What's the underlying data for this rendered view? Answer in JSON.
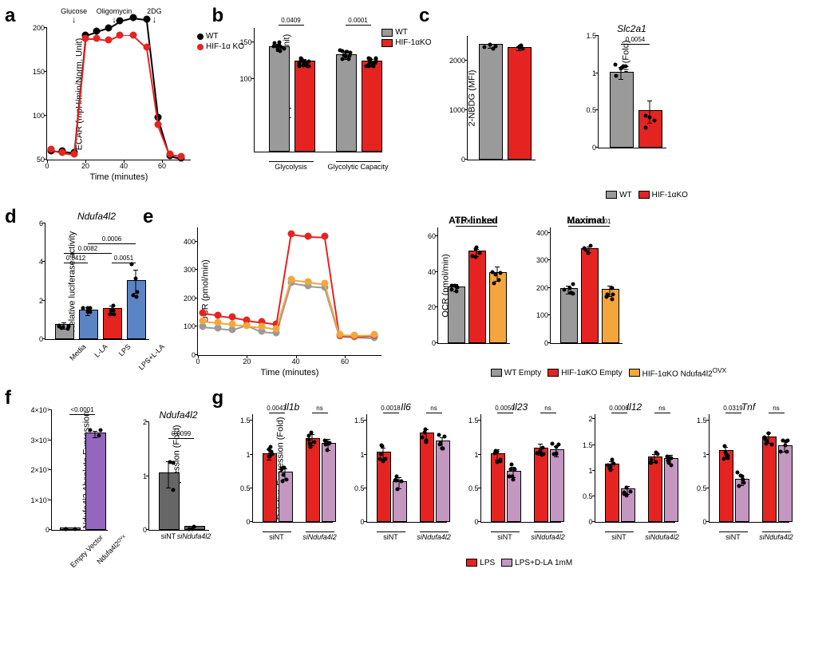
{
  "colors": {
    "wt_gray": "#9a9a9a",
    "ko_red": "#e52421",
    "lla_blue": "#5b84c4",
    "ndufa_orange": "#f4a63d",
    "ndufa_purple": "#9467bd",
    "lps_dla_mauve": "#c497c1",
    "black": "#000000",
    "white": "#ffffff"
  },
  "panel_a": {
    "label": "a",
    "ytitle": "ECAR (mpH/min/Norm. Unit)",
    "xtitle": "Time (minutes)",
    "ylim": [
      50,
      200
    ],
    "yticks": [
      50,
      100,
      150,
      200
    ],
    "xlim": [
      0,
      75
    ],
    "xticks": [
      0,
      20,
      40,
      60
    ],
    "arrows": [
      {
        "x": 14,
        "label": "Glucose"
      },
      {
        "x": 35,
        "label": "Oligomycin"
      },
      {
        "x": 56,
        "label": "2DG"
      }
    ],
    "series": [
      {
        "name": "WT",
        "color": "#000000",
        "marker_fill": "#000000",
        "x": [
          2,
          8,
          14,
          20,
          26,
          32,
          38,
          45,
          52,
          58,
          64,
          70
        ],
        "y": [
          60,
          60,
          58,
          192,
          196,
          200,
          208,
          212,
          210,
          98,
          55,
          52
        ]
      },
      {
        "name": "HIF-1α KO",
        "color": "#e52421",
        "marker_fill": "#e52421",
        "x": [
          2,
          8,
          14,
          20,
          26,
          32,
          38,
          45,
          52,
          58,
          64,
          70
        ],
        "y": [
          62,
          58,
          56,
          188,
          188,
          186,
          192,
          192,
          178,
          90,
          56,
          54
        ]
      }
    ]
  },
  "panel_b": {
    "label": "b",
    "ytitle": "ECAR (mpH/min/Norm. Unit)",
    "ylim": [
      0,
      170
    ],
    "yticks": [
      100,
      150
    ],
    "groups": [
      "Glycolysis",
      "Glycolytic Capacity"
    ],
    "bars": [
      {
        "group": 0,
        "pos": 0,
        "color": "#9a9a9a",
        "value": 143,
        "err": 5,
        "n": 10
      },
      {
        "group": 0,
        "pos": 1,
        "color": "#e52421",
        "value": 123,
        "err": 4,
        "n": 16
      },
      {
        "group": 1,
        "pos": 0,
        "color": "#9a9a9a",
        "value": 132,
        "err": 5,
        "n": 10
      },
      {
        "group": 1,
        "pos": 1,
        "color": "#e52421",
        "value": 123,
        "err": 4,
        "n": 16
      }
    ],
    "sig": [
      {
        "g0": 0,
        "g1": 1,
        "group": 0,
        "label": "0.0409"
      },
      {
        "g0": 0,
        "g1": 1,
        "group": 1,
        "label": "0.0001"
      }
    ],
    "legend": [
      {
        "label": "WT",
        "color": "#9a9a9a"
      },
      {
        "label": "HIF-1αKO",
        "color": "#e52421"
      }
    ]
  },
  "panel_c_left": {
    "label": "c",
    "ytitle": "2-NBDG (MFI)",
    "ylim": [
      0,
      2500
    ],
    "yticks": [
      0,
      1000,
      2000
    ],
    "bars": [
      {
        "pos": 0,
        "color": "#9a9a9a",
        "value": 2300,
        "err": 40,
        "n": 4
      },
      {
        "pos": 1,
        "color": "#e52421",
        "value": 2250,
        "err": 40,
        "n": 4
      }
    ]
  },
  "panel_c_right": {
    "title": "Slc2a1",
    "ytitle": "Relative Expression (Fold)",
    "ylim": [
      0,
      1.5
    ],
    "yticks": [
      0,
      0.5,
      1.0,
      1.5
    ],
    "bars": [
      {
        "pos": 0,
        "color": "#9a9a9a",
        "value": 1.0,
        "err": 0.08,
        "n": 7
      },
      {
        "pos": 1,
        "color": "#e52421",
        "value": 0.48,
        "err": 0.15,
        "n": 4
      }
    ],
    "sig": [
      {
        "g0": 0,
        "g1": 1,
        "label": "0.0054"
      }
    ],
    "legend": [
      {
        "label": "WT",
        "color": "#9a9a9a"
      },
      {
        "label": "HIF-1αKO",
        "color": "#e52421"
      }
    ]
  },
  "panel_d": {
    "label": "d",
    "title": "Ndufa4l2",
    "ytitle": "Relative luciferase activity",
    "ylim": [
      0,
      6
    ],
    "yticks": [
      0,
      2,
      4,
      6
    ],
    "xlabels": [
      "Media",
      "L-LA",
      "LPS",
      "LPS+L-LA"
    ],
    "bars": [
      {
        "pos": 0,
        "color": "#9a9a9a",
        "value": 0.7,
        "err": 0.15,
        "n": 6
      },
      {
        "pos": 1,
        "color": "#5b84c4",
        "value": 1.45,
        "err": 0.2,
        "n": 6
      },
      {
        "pos": 2,
        "color": "#e52421",
        "value": 1.55,
        "err": 0.2,
        "n": 6
      },
      {
        "pos": 3,
        "color": "#5b84c4",
        "value": 3.0,
        "err": 0.6,
        "n": 6
      }
    ],
    "sig": [
      {
        "g0": 0,
        "g1": 1,
        "label": "0.0412",
        "level": 0
      },
      {
        "g0": 0,
        "g1": 2,
        "label": "0.0082",
        "level": 1
      },
      {
        "g0": 2,
        "g1": 3,
        "label": "0.0051",
        "level": 0
      },
      {
        "g0": 1,
        "g1": 3,
        "label": "0.0006",
        "level": 2
      }
    ]
  },
  "panel_e_line": {
    "label": "e",
    "ytitle": "OCR (pmol/min)",
    "xtitle": "Time (minutes)",
    "ylim": [
      0,
      450
    ],
    "yticks": [
      0,
      100,
      200,
      300,
      400
    ],
    "xlim": [
      0,
      75
    ],
    "xticks": [
      0,
      20,
      40,
      60
    ],
    "series": [
      {
        "name": "WT Empty",
        "color": "#9a9a9a",
        "x": [
          2,
          8,
          14,
          20,
          26,
          32,
          38,
          45,
          52,
          58,
          64,
          72
        ],
        "y": [
          100,
          95,
          90,
          108,
          85,
          80,
          255,
          245,
          240,
          68,
          65,
          62
        ]
      },
      {
        "name": "HIF-1αKO Empty",
        "color": "#e52421",
        "x": [
          2,
          8,
          14,
          20,
          26,
          32,
          38,
          45,
          52,
          58,
          64,
          72
        ],
        "y": [
          148,
          142,
          135,
          125,
          118,
          110,
          428,
          420,
          418,
          70,
          68,
          70
        ]
      },
      {
        "name": "HIF-1αKO Ndufa4l2OVX",
        "color": "#f4a63d",
        "x": [
          2,
          8,
          14,
          20,
          26,
          32,
          38,
          45,
          52,
          58,
          64,
          72
        ],
        "y": [
          120,
          115,
          110,
          105,
          100,
          92,
          268,
          260,
          252,
          72,
          70,
          72
        ]
      }
    ]
  },
  "panel_e_atp": {
    "title": "ATP-linked",
    "ytitle": "OCR (pmol/min)",
    "ylim": [
      0,
      65
    ],
    "yticks": [
      0,
      20,
      40,
      60
    ],
    "bars": [
      {
        "pos": 0,
        "color": "#9a9a9a",
        "value": 31,
        "err": 2,
        "n": 6
      },
      {
        "pos": 1,
        "color": "#e52421",
        "value": 51,
        "err": 2,
        "n": 5
      },
      {
        "pos": 2,
        "color": "#f4a63d",
        "value": 39,
        "err": 4,
        "n": 5
      }
    ],
    "sig": [
      {
        "g0": 0,
        "g1": 1,
        "label": "0.0001",
        "level": 0
      },
      {
        "g0": 1,
        "g1": 2,
        "label": "0.0133",
        "level": 0
      }
    ]
  },
  "panel_e_max": {
    "title": "Maximal",
    "ylim": [
      0,
      420
    ],
    "yticks": [
      0,
      100,
      200,
      300,
      400
    ],
    "bars": [
      {
        "pos": 0,
        "color": "#9a9a9a",
        "value": 195,
        "err": 15,
        "n": 6
      },
      {
        "pos": 1,
        "color": "#e52421",
        "value": 340,
        "err": 10,
        "n": 5
      },
      {
        "pos": 2,
        "color": "#f4a63d",
        "value": 190,
        "err": 20,
        "n": 5
      }
    ],
    "sig": [
      {
        "g0": 0,
        "g1": 1,
        "label": "<0.0001",
        "level": 0
      },
      {
        "g0": 1,
        "g1": 2,
        "label": "<0.0001",
        "level": 0
      }
    ]
  },
  "panel_e_legend": [
    {
      "label": "WT Empty",
      "color": "#9a9a9a"
    },
    {
      "label": "HIF-1αKO Empty",
      "color": "#e52421"
    },
    {
      "label": "HIF-1αKO Ndufa4l2",
      "sup": "OVX",
      "color": "#f4a63d"
    }
  ],
  "panel_f_left": {
    "label": "f",
    "ytitle": "Ndufa4l2 Absolute Expression",
    "ylim": [
      0,
      40000000.0
    ],
    "yticks_labels": [
      "0",
      "1×10⁷",
      "2×10⁷",
      "3×10⁷",
      "4×10⁷"
    ],
    "yticks": [
      0,
      10000000.0,
      20000000.0,
      30000000.0,
      40000000.0
    ],
    "xlabels": [
      "Empty Vector",
      "Ndufa4l2ᴼⱽˣ"
    ],
    "bars": [
      {
        "pos": 0,
        "color": "#9a9a9a",
        "value": 200000,
        "err": 50000,
        "n": 3
      },
      {
        "pos": 1,
        "color": "#9467bd",
        "value": 32000000.0,
        "err": 1000000.0,
        "n": 3
      }
    ],
    "sig": [
      {
        "g0": 0,
        "g1": 1,
        "label": "<0.0001"
      }
    ]
  },
  "panel_f_right": {
    "title": "Ndufa4l2",
    "ytitle": "Relative Expression (Fold)",
    "ylim": [
      0,
      2
    ],
    "yticks": [
      0,
      1,
      2
    ],
    "xlabels": [
      "siNT",
      "siNdufa4l2"
    ],
    "bars": [
      {
        "pos": 0,
        "color": "#666666",
        "value": 1.03,
        "err": 0.25,
        "n": 3
      },
      {
        "pos": 1,
        "color": "#666666",
        "value": 0.04,
        "err": 0.02,
        "n": 3
      }
    ],
    "sig": [
      {
        "g0": 0,
        "g1": 1,
        "label": "0.0099"
      }
    ]
  },
  "panel_g": {
    "label": "g",
    "ytitle": "Relative Expression (Fold)",
    "groups": [
      "siNT",
      "siNdufa4l2"
    ],
    "legend": [
      {
        "label": "LPS",
        "color": "#e52421"
      },
      {
        "label": "LPS+D-LA 1mM",
        "color": "#c497c1"
      }
    ],
    "genes": [
      {
        "name": "Il1b",
        "ylim": [
          0,
          1.6
        ],
        "yticks": [
          0,
          0.5,
          1.0,
          1.5
        ],
        "bars": [
          1.0,
          0.72,
          1.22,
          1.15
        ],
        "sig": [
          "0.0043",
          "ns"
        ]
      },
      {
        "name": "Il6",
        "ylim": [
          0,
          1.6
        ],
        "yticks": [
          0,
          0.5,
          1.0,
          1.5
        ],
        "bars": [
          1.02,
          0.58,
          1.3,
          1.18
        ],
        "sig": [
          "0.0018",
          "ns"
        ]
      },
      {
        "name": "Il23",
        "ylim": [
          0,
          1.6
        ],
        "yticks": [
          0,
          0.5,
          1.0,
          1.5
        ],
        "bars": [
          1.0,
          0.74,
          1.08,
          1.05
        ],
        "sig": [
          "0.0050",
          "ns"
        ]
      },
      {
        "name": "Il12",
        "ylim": [
          0,
          2.1
        ],
        "yticks": [
          0,
          0.5,
          1.0,
          1.5,
          2.0
        ],
        "bars": [
          1.1,
          0.62,
          1.25,
          1.22
        ],
        "sig": [
          "0.0006",
          "ns"
        ]
      },
      {
        "name": "Tnf",
        "ylim": [
          0,
          1.6
        ],
        "yticks": [
          0,
          0.5,
          1.0,
          1.5
        ],
        "bars": [
          1.04,
          0.62,
          1.25,
          1.12
        ],
        "sig": [
          "0.0319",
          "ns"
        ]
      }
    ]
  }
}
